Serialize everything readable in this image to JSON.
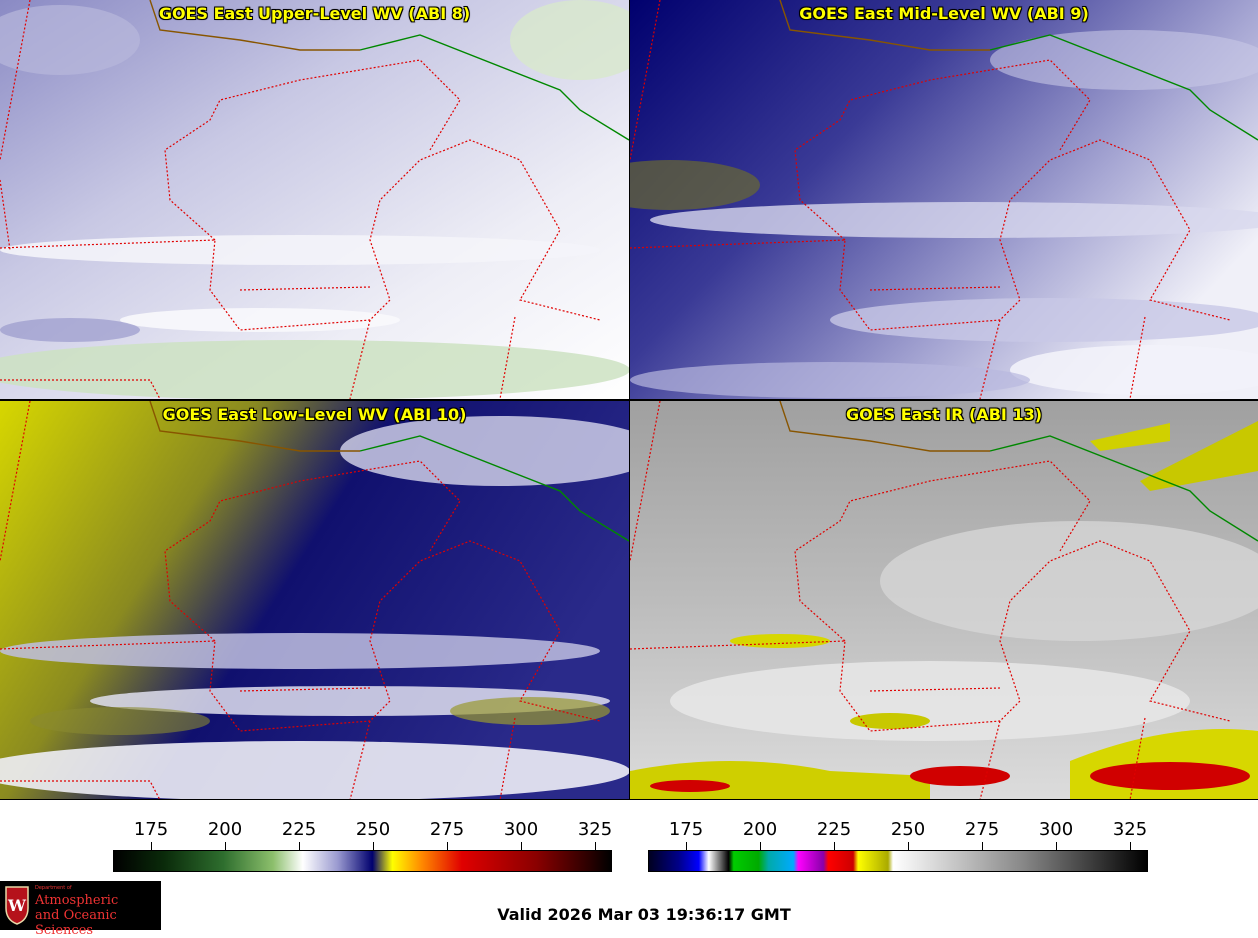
{
  "panels": [
    {
      "title": "GOES East Upper-Level WV (ABI 8)"
    },
    {
      "title": "GOES East Mid-Level WV (ABI 9)"
    },
    {
      "title": "GOES East Low-Level WV (ABI 10)"
    },
    {
      "title": "GOES East IR (ABI 13)"
    }
  ],
  "colorbars": [
    {
      "ticks": [
        "175",
        "200",
        "225",
        "250",
        "275",
        "300",
        "325"
      ]
    },
    {
      "ticks": [
        "175",
        "200",
        "225",
        "250",
        "275",
        "300",
        "325"
      ]
    }
  ],
  "valid_time": "Valid 2026 Mar 03 19:36:17 GMT",
  "logo": {
    "line1": "Department of",
    "line2": "Atmospheric",
    "line3": "and Oceanic Sciences",
    "crest_letter": "W"
  },
  "colors": {
    "wv_dark": "#00006e",
    "wv_mid": "#7a7ab8",
    "wv_light": "#e8e8f4",
    "wv_green": "#b9d7ad",
    "wv_yellow": "#d7d700",
    "ir_gray": "#9c9c9c",
    "ir_light": "#e6e6e6",
    "ir_yellow": "#e5e500",
    "ir_red": "#e00000",
    "state_border": "#e00000",
    "intl_border": "#008800",
    "title_text": "#ffff00"
  }
}
